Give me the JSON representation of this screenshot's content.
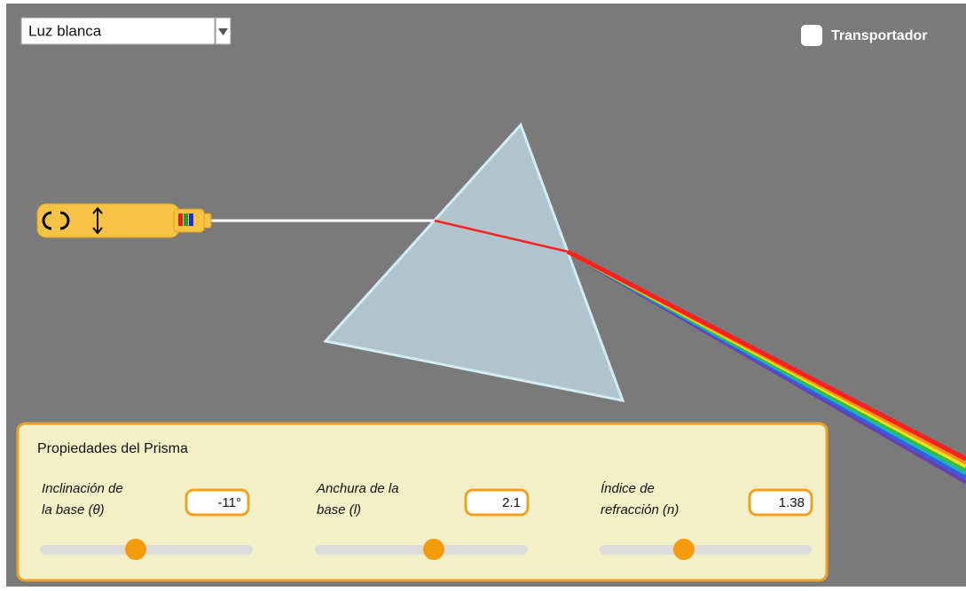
{
  "dropdown": {
    "selected": "Luz blanca"
  },
  "checkbox": {
    "label": "Transportador"
  },
  "panel": {
    "title": "Propiedades del Prisma",
    "controls": [
      {
        "label_lines": [
          "Inclinación de",
          "la base (θ)"
        ],
        "value": "-11°"
      },
      {
        "label_lines": [
          "Anchura de la",
          "base (l)"
        ],
        "value": "2.1"
      },
      {
        "label_lines": [
          "Índice de",
          "refracción (n)"
        ],
        "value": "1.38"
      }
    ]
  }
}
